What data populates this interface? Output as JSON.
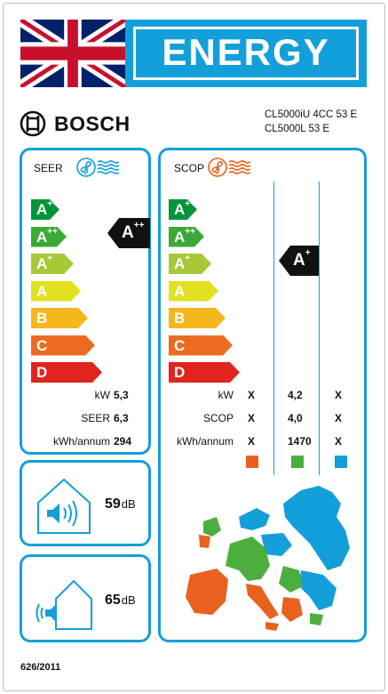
{
  "header": {
    "title": "ENERGY",
    "flag": "union-jack-flag"
  },
  "brand": {
    "name": "BOSCH",
    "logo": "bosch-armature-logo"
  },
  "models": [
    "CL5000iU 4CC 53 E",
    "CL5000L 53 E"
  ],
  "seer": {
    "title": "SEER",
    "icon": "cooling-fan-icon",
    "icon_color": "#139fd9",
    "rating": {
      "class": "A",
      "plus": "++"
    },
    "rows": [
      {
        "label": "kW",
        "value": "5,3"
      },
      {
        "label": "SEER",
        "value": "6,3"
      },
      {
        "label": "kWh/annum",
        "value": "294"
      }
    ]
  },
  "scop": {
    "title": "SCOP",
    "icon": "heating-fan-icon",
    "icon_color": "#e8621d",
    "rating": {
      "class": "A",
      "plus": "+"
    },
    "rows": [
      {
        "label": "kW",
        "values": [
          "X",
          "4,2",
          "X"
        ]
      },
      {
        "label": "SCOP",
        "values": [
          "X",
          "4,0",
          "X"
        ]
      },
      {
        "label": "kWh/annum",
        "values": [
          "X",
          "1470",
          "X"
        ]
      }
    ],
    "zones": [
      {
        "name": "warmer",
        "color": "#e8621d"
      },
      {
        "name": "average",
        "color": "#4caf3d"
      },
      {
        "name": "colder",
        "color": "#139fd9"
      }
    ],
    "map": "europe-climate-zones-map"
  },
  "energy_classes": [
    {
      "class": "A",
      "plus": "+++",
      "color": "#00953a"
    },
    {
      "class": "A",
      "plus": "++",
      "color": "#3aa935"
    },
    {
      "class": "A",
      "plus": "+",
      "color": "#a6c938"
    },
    {
      "class": "A",
      "plus": "",
      "color": "#e3e01f"
    },
    {
      "class": "B",
      "plus": "",
      "color": "#f4b71c"
    },
    {
      "class": "C",
      "plus": "",
      "color": "#ec6b22"
    },
    {
      "class": "D",
      "plus": "",
      "color": "#e0251f"
    }
  ],
  "noise": [
    {
      "type": "indoor",
      "icon": "indoor-speaker-icon",
      "value": "59",
      "unit": "dB"
    },
    {
      "type": "outdoor",
      "icon": "outdoor-speaker-icon",
      "value": "65",
      "unit": "dB"
    }
  ],
  "regulation": "626/2011",
  "colors": {
    "accent": "#139fd9"
  }
}
